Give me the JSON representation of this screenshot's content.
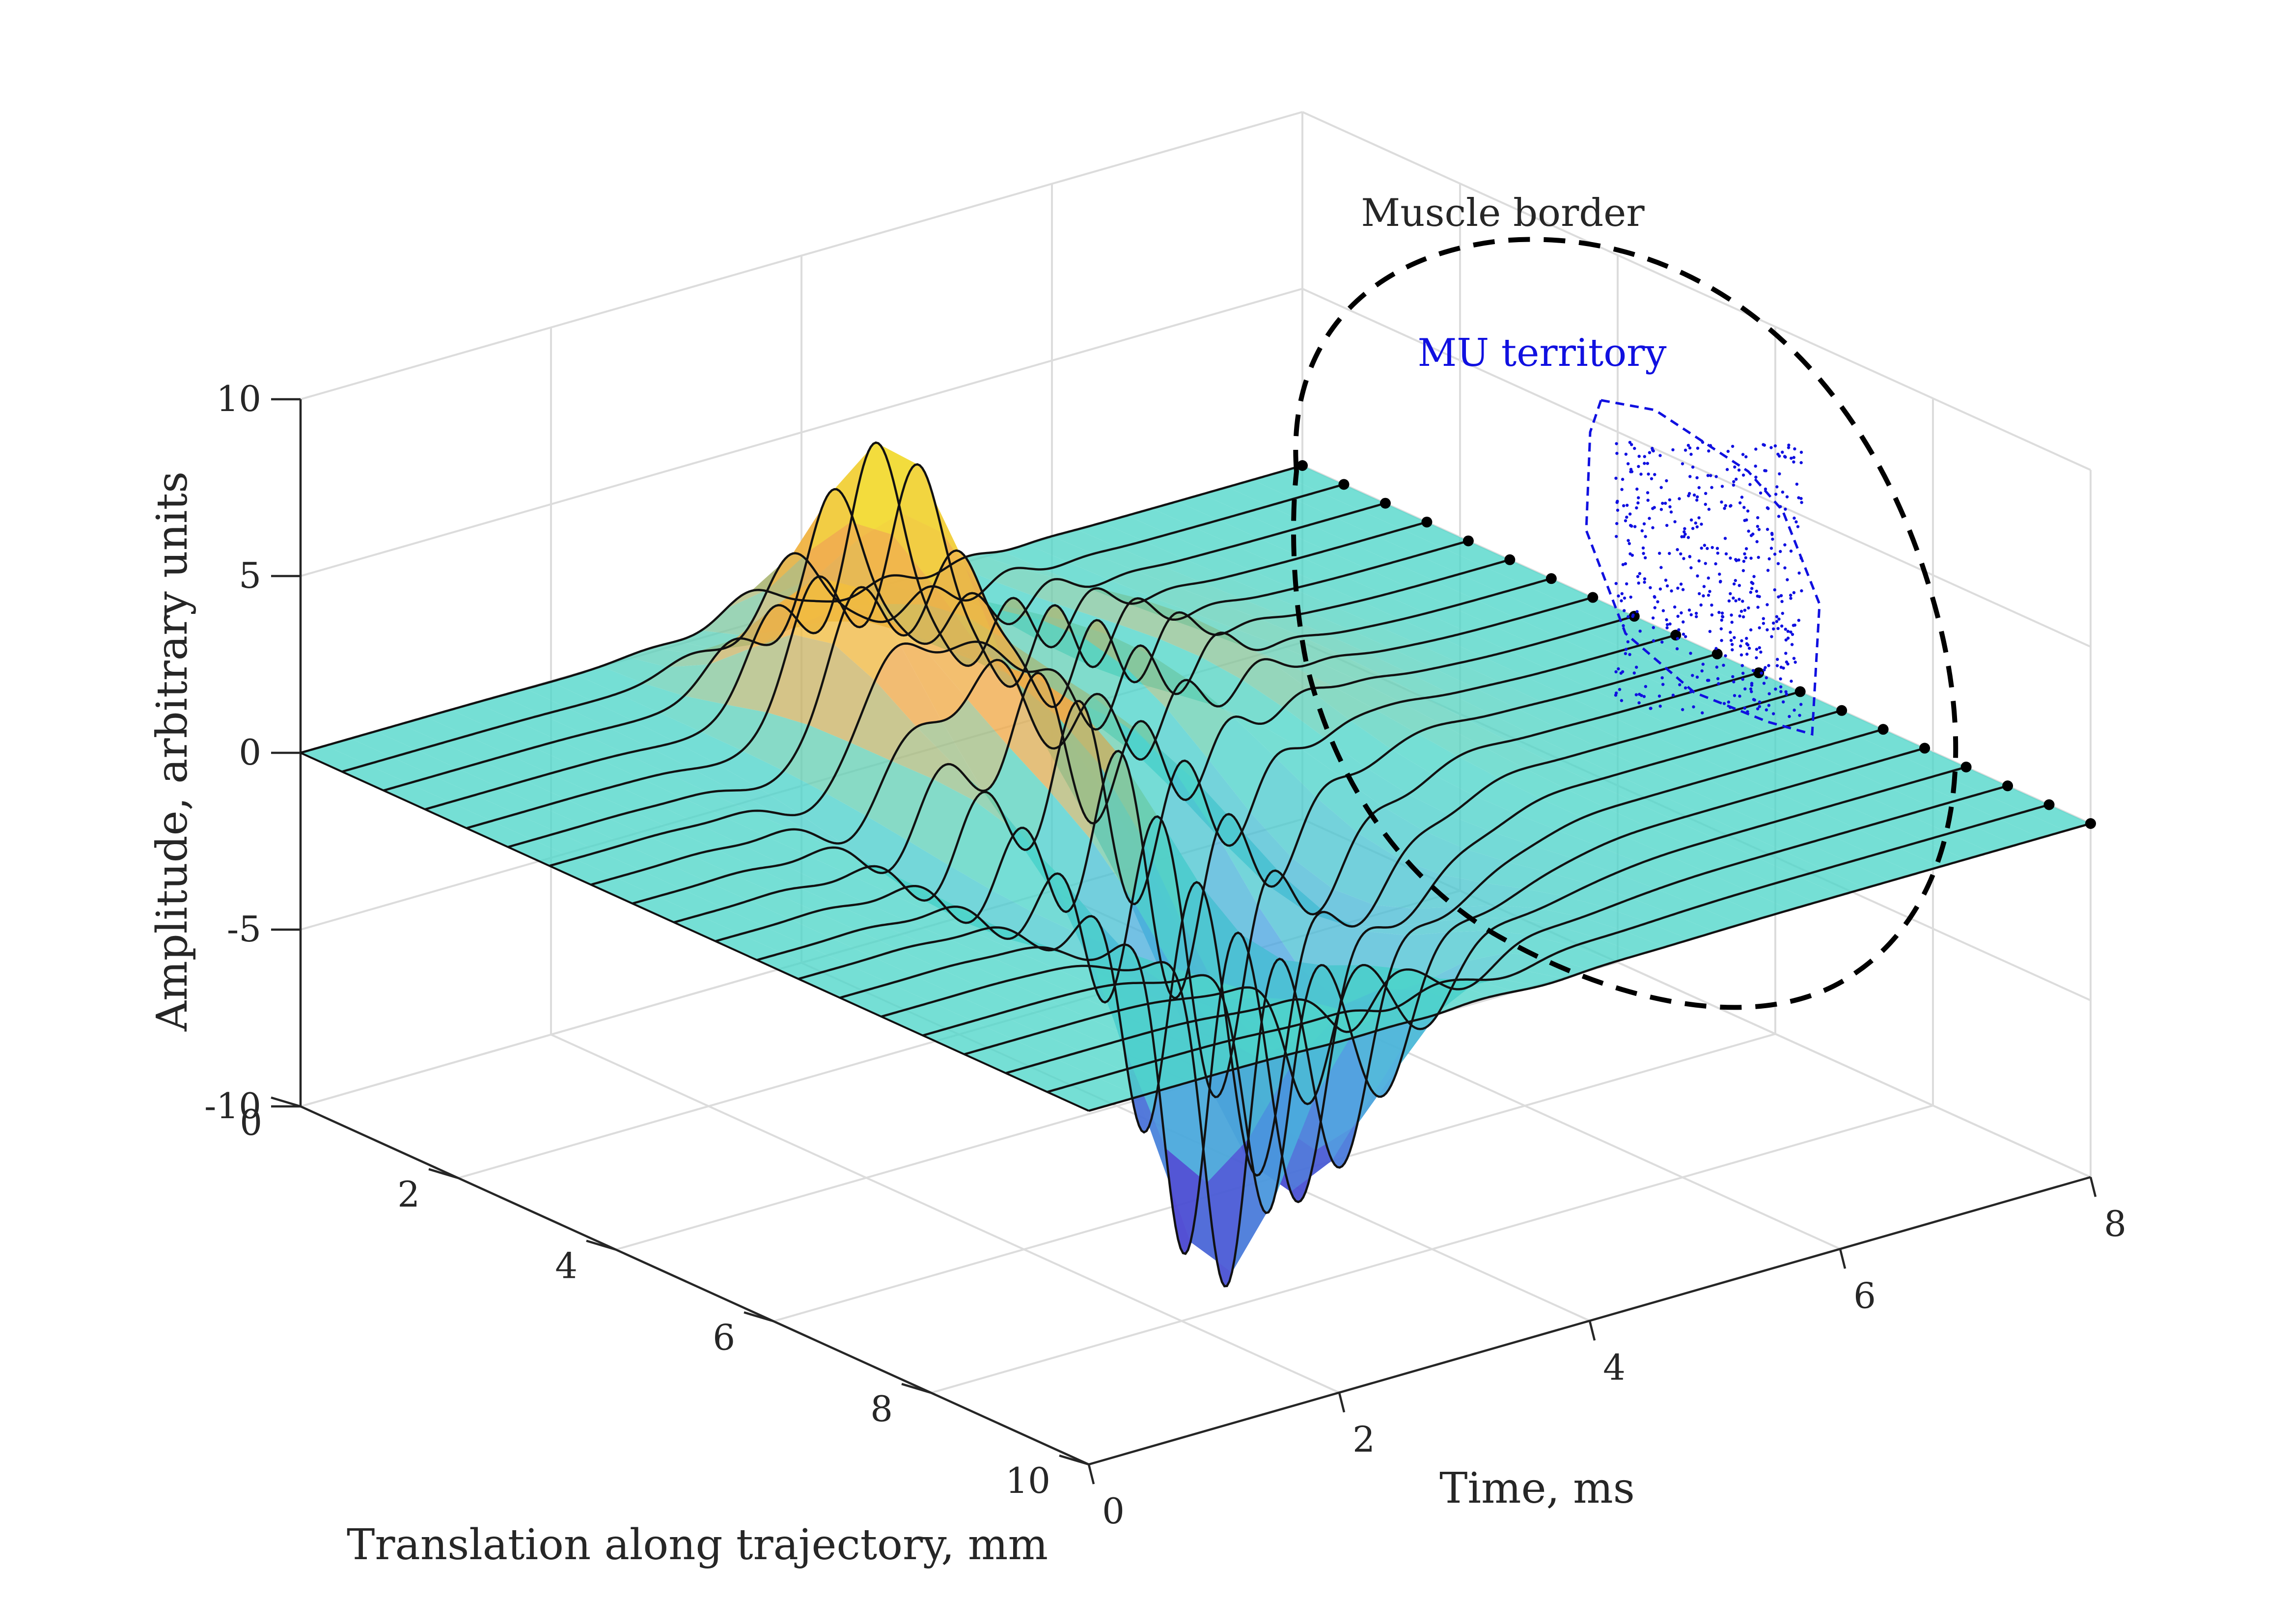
{
  "chart_data": {
    "type": "surface",
    "zlabel": "Amplitude, arbitrary units",
    "xlabel": "Time, ms",
    "ylabel": "Translation along trajectory, mm",
    "xlim": [
      0,
      8
    ],
    "ylim": [
      0,
      10
    ],
    "zlim": [
      -10,
      10
    ],
    "x_ticks": [
      "0",
      "2",
      "4",
      "6",
      "8"
    ],
    "y_ticks": [
      "0",
      "2",
      "4",
      "6",
      "8",
      "10"
    ],
    "z_ticks": [
      "-10",
      "-5",
      "0",
      "5",
      "10"
    ],
    "grid": true,
    "annotations": {
      "muscle_border": "Muscle border",
      "mu_territory": "MU territory"
    },
    "colors": {
      "surface_low": "#4a2fcf",
      "surface_mid": "#4ed6c9",
      "surface_high": "#f2ec2c",
      "trace_line": "#111111",
      "muscle_border": "#000000",
      "mu_territory": "#1010e0"
    },
    "trace_count": 20,
    "peaks": [
      {
        "t_ms": 2.8,
        "y_mm": 2.5,
        "amplitude": 4.0
      },
      {
        "t_ms": 3.6,
        "y_mm": 1.8,
        "amplitude": 6.5
      },
      {
        "t_ms": 2.8,
        "y_mm": 7.0,
        "amplitude": -10.0
      },
      {
        "t_ms": 3.6,
        "y_mm": 6.8,
        "amplitude": -8.0
      }
    ]
  }
}
